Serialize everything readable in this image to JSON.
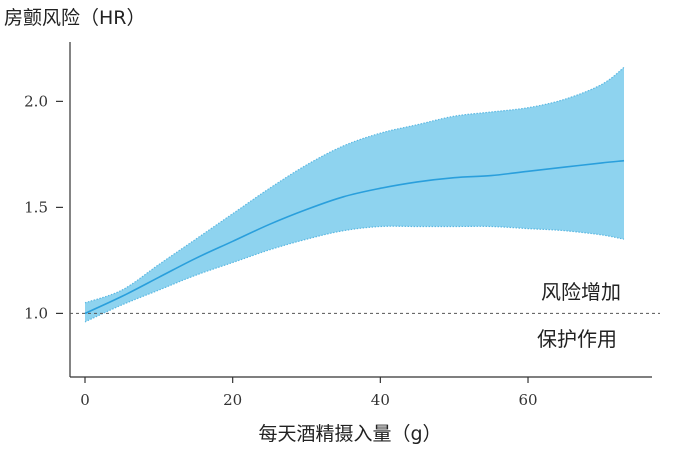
{
  "chart_data": {
    "type": "line",
    "title": "",
    "ylabel": "房颤风险（HR）",
    "xlabel": "每天酒精摄入量（g）",
    "xlim": [
      0,
      73
    ],
    "ylim": [
      0.7,
      2.28
    ],
    "x_ticks": [
      0,
      20,
      40,
      60
    ],
    "x_tick_labels": [
      "0",
      "20",
      "40",
      "60"
    ],
    "y_ticks": [
      1.0,
      1.5,
      2.0
    ],
    "y_tick_labels": [
      "1.0",
      "1.5",
      "2.0"
    ],
    "reference_line": {
      "y": 1.0,
      "style": "dashed"
    },
    "annotations": {
      "above": "风险增加",
      "below": "保护作用"
    },
    "series": [
      {
        "x": [
          0,
          5,
          10,
          15,
          20,
          25,
          30,
          35,
          40,
          45,
          50,
          55,
          60,
          65,
          70,
          73
        ],
        "y": [
          1.0,
          1.08,
          1.17,
          1.26,
          1.34,
          1.42,
          1.49,
          1.55,
          1.59,
          1.62,
          1.64,
          1.65,
          1.67,
          1.69,
          1.71,
          1.72
        ],
        "lower": [
          0.96,
          1.04,
          1.11,
          1.18,
          1.24,
          1.3,
          1.35,
          1.39,
          1.41,
          1.41,
          1.41,
          1.41,
          1.4,
          1.39,
          1.37,
          1.35
        ],
        "upper": [
          1.05,
          1.11,
          1.23,
          1.35,
          1.47,
          1.59,
          1.7,
          1.79,
          1.85,
          1.89,
          1.93,
          1.95,
          1.97,
          2.01,
          2.08,
          2.16
        ]
      }
    ],
    "colors": {
      "line": "#2a9fdc",
      "band": "#8ed3ef",
      "band_edge": "#5bb8e2",
      "axis": "#333333",
      "reference": "#555555"
    }
  }
}
